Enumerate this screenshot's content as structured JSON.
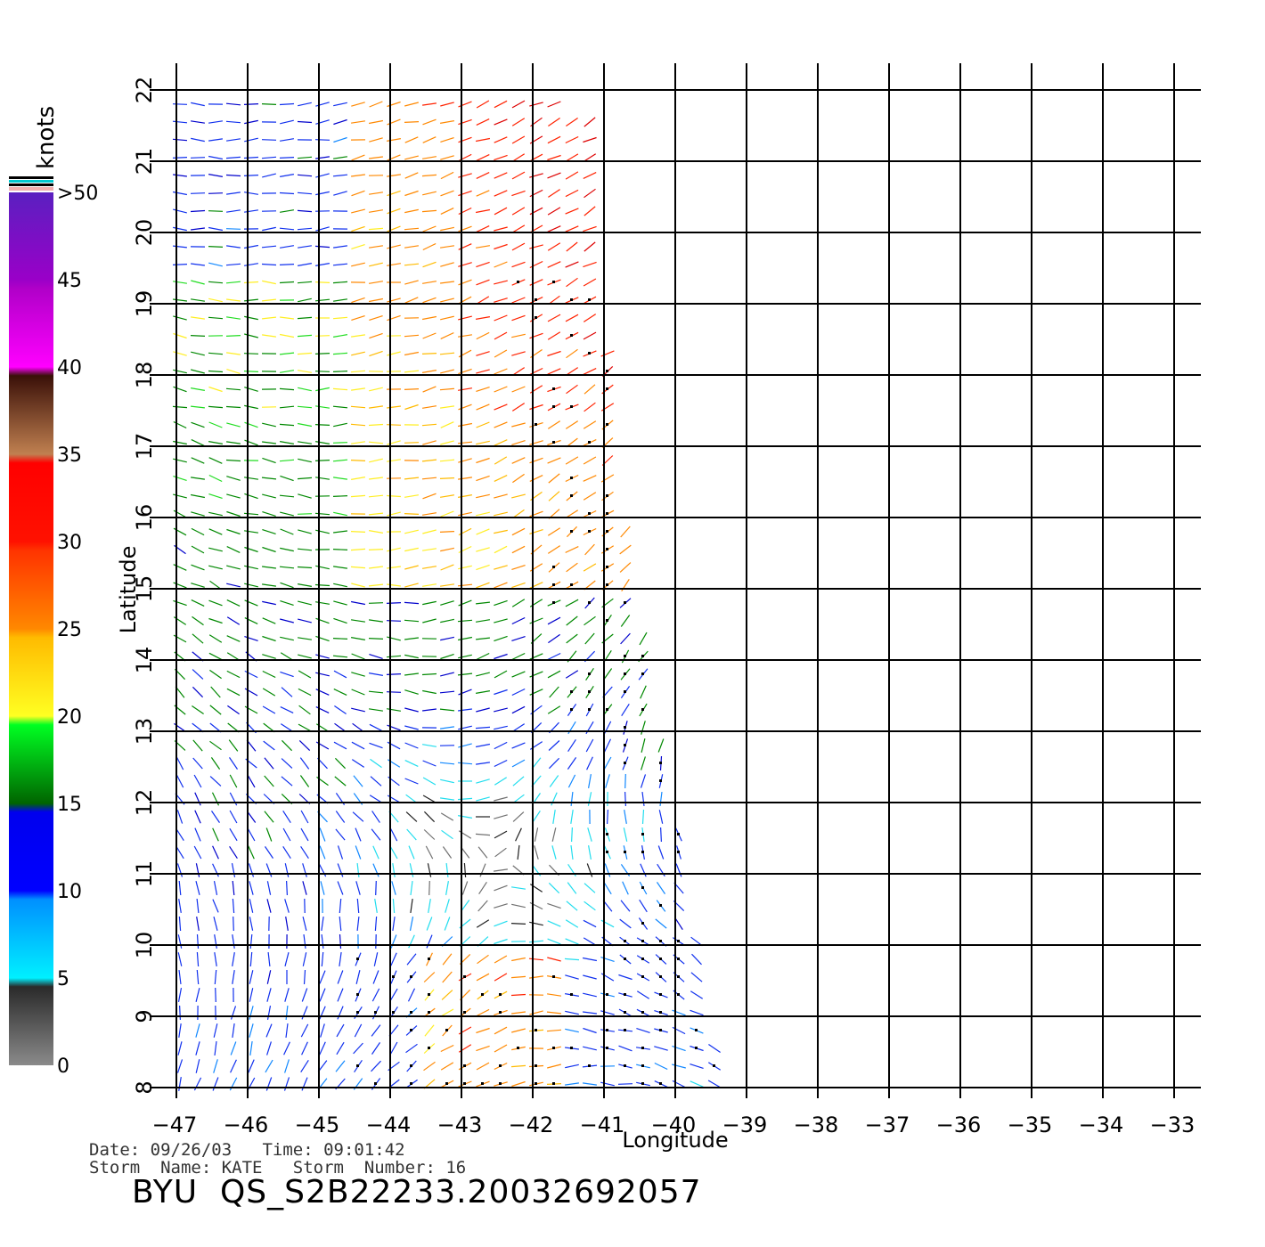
{
  "map": {
    "lon_labels": [
      "−47",
      "−46",
      "−45",
      "−44",
      "−43",
      "−42",
      "−41",
      "−40",
      "−39",
      "−38",
      "−37",
      "−36",
      "−35",
      "−34",
      "−33"
    ],
    "lon_values": [
      -47,
      -46,
      -45,
      -44,
      -43,
      -42,
      -41,
      -40,
      -39,
      -38,
      -37,
      -36,
      -35,
      -34,
      -33
    ],
    "lat_labels": [
      "8",
      "9",
      "10",
      "11",
      "12",
      "13",
      "14",
      "15",
      "16",
      "17",
      "18",
      "19",
      "20",
      "21",
      "22"
    ],
    "lat_values": [
      8,
      9,
      10,
      11,
      12,
      13,
      14,
      15,
      16,
      17,
      18,
      19,
      20,
      21,
      22
    ],
    "lon_range": [
      -47,
      -33
    ],
    "lat_range": [
      8,
      22
    ],
    "xlabel": "Longitude",
    "ylabel": "Latitude"
  },
  "colorbar": {
    "unit": "knots",
    "tick_labels": [
      "0",
      "5",
      "10",
      "15",
      "20",
      "25",
      "30",
      "35",
      "40",
      "45",
      ">50"
    ],
    "tick_values": [
      0,
      5,
      10,
      15,
      20,
      25,
      30,
      35,
      40,
      45,
      50
    ],
    "colors": [
      "#888888",
      "#00eeff",
      "#0000ff",
      "#00ff33",
      "#ffcc00",
      "#ff3300",
      "#5a1a10",
      "#ff00ff",
      "#7a20d0"
    ]
  },
  "info": {
    "date_line": "Date: 09/26/03   Time: 09:01:42",
    "storm_line": "Storm  Name: KATE   Storm  Number: 16",
    "title": "BYU  QS_S2B22233.20032692057"
  }
}
